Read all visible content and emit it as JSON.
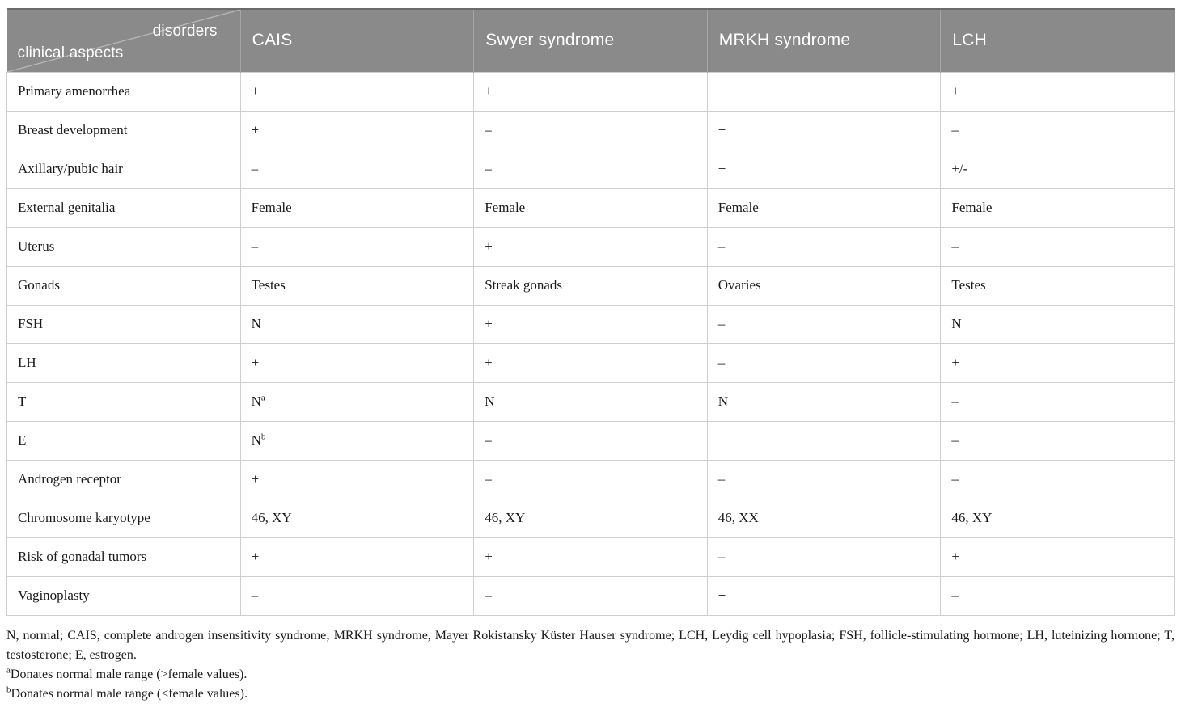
{
  "table": {
    "corner": {
      "top_label": "disorders",
      "bottom_label": "clinical aspects"
    },
    "columns": [
      "CAIS",
      "Swyer syndrome",
      "MRKH syndrome",
      "LCH"
    ],
    "rows": [
      {
        "label": "Primary amenorrhea",
        "values": [
          "+",
          "+",
          "+",
          "+"
        ],
        "sups": [
          "",
          "",
          "",
          ""
        ]
      },
      {
        "label": "Breast development",
        "values": [
          "+",
          "–",
          "+",
          "–"
        ],
        "sups": [
          "",
          "",
          "",
          ""
        ]
      },
      {
        "label": "Axillary/pubic hair",
        "values": [
          "–",
          "–",
          "+",
          "+/-"
        ],
        "sups": [
          "",
          "",
          "",
          ""
        ]
      },
      {
        "label": "External genitalia",
        "values": [
          "Female",
          "Female",
          "Female",
          "Female"
        ],
        "sups": [
          "",
          "",
          "",
          ""
        ]
      },
      {
        "label": "Uterus",
        "values": [
          "–",
          "+",
          "–",
          "–"
        ],
        "sups": [
          "",
          "",
          "",
          ""
        ]
      },
      {
        "label": "Gonads",
        "values": [
          "Testes",
          "Streak gonads",
          "Ovaries",
          "Testes"
        ],
        "sups": [
          "",
          "",
          "",
          ""
        ]
      },
      {
        "label": "FSH",
        "values": [
          "N",
          "+",
          "–",
          "N"
        ],
        "sups": [
          "",
          "",
          "",
          ""
        ]
      },
      {
        "label": "LH",
        "values": [
          "+",
          "+",
          "–",
          "+"
        ],
        "sups": [
          "",
          "",
          "",
          ""
        ]
      },
      {
        "label": "T",
        "values": [
          "N",
          "N",
          "N",
          "–"
        ],
        "sups": [
          "a",
          "",
          "",
          ""
        ]
      },
      {
        "label": "E",
        "values": [
          "N",
          "–",
          "+",
          "–"
        ],
        "sups": [
          "b",
          "",
          "",
          ""
        ]
      },
      {
        "label": "Androgen receptor",
        "values": [
          "+",
          "–",
          "–",
          "–"
        ],
        "sups": [
          "",
          "",
          "",
          ""
        ]
      },
      {
        "label": "Chromosome karyotype",
        "values": [
          "46, XY",
          "46, XY",
          "46, XX",
          "46, XY"
        ],
        "sups": [
          "",
          "",
          "",
          ""
        ]
      },
      {
        "label": "Risk of gonadal tumors",
        "values": [
          "+",
          "+",
          "–",
          "+"
        ],
        "sups": [
          "",
          "",
          "",
          ""
        ]
      },
      {
        "label": "Vaginoplasty",
        "values": [
          "–",
          "–",
          "+",
          "–"
        ],
        "sups": [
          "",
          "",
          "",
          ""
        ]
      }
    ]
  },
  "footer": {
    "abbreviations": "N, normal; CAIS, complete androgen insensitivity syndrome; MRKH syndrome, Mayer Rokistansky Küster Hauser syndrome; LCH, Leydig cell hypoplasia; FSH, follicle-stimulating hormone; LH, luteinizing hormone; T, testosterone; E, estrogen.",
    "footnotes": [
      {
        "marker": "a",
        "text": "Donates normal male range (>female values)."
      },
      {
        "marker": "b",
        "text": "Donates normal male range (<female values)."
      }
    ]
  },
  "colors": {
    "header_bg": "#8a8a8a",
    "header_top_rule": "#6b6b6b",
    "header_divider": "#a5a5a5",
    "grid_line": "#cfcfcf",
    "body_text": "#1a1a1a",
    "header_text": "#ffffff"
  }
}
